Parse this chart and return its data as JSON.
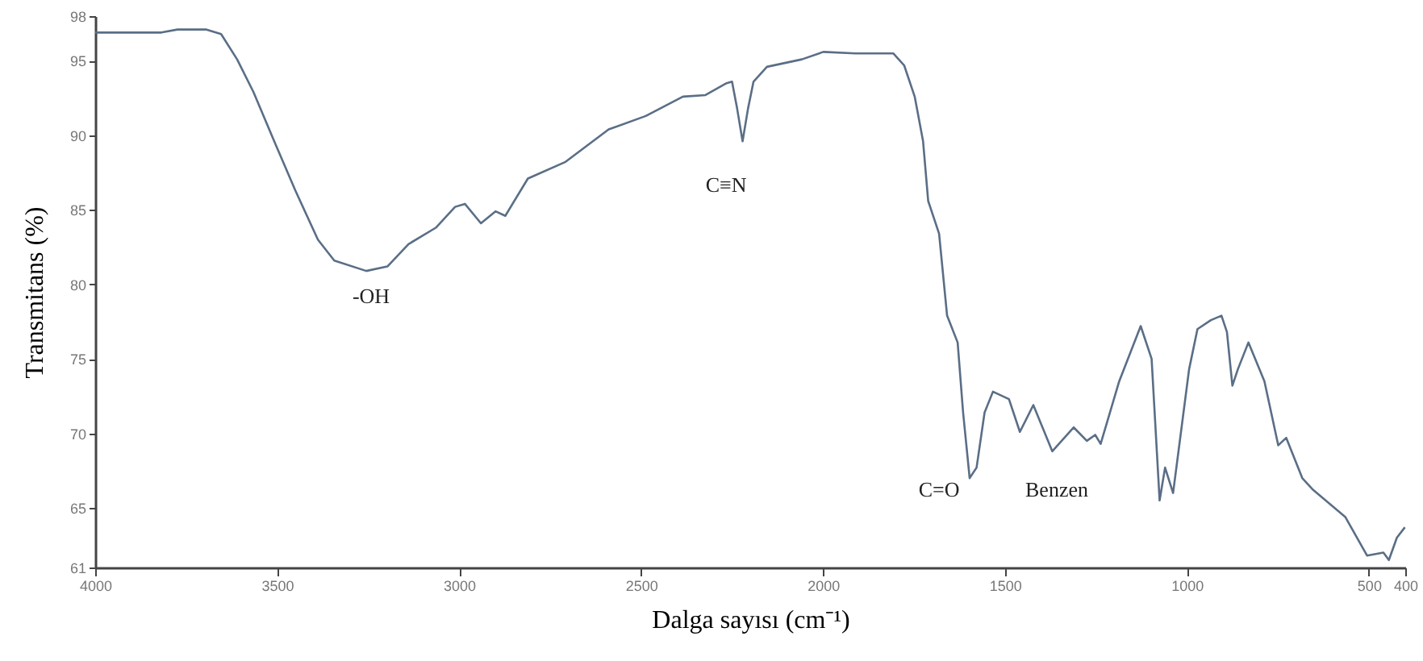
{
  "chart_data": {
    "type": "line",
    "xlabel": "Dalga sayısı (cm⁻¹)",
    "ylabel": "Transmitans (%)",
    "xlim": [
      4000,
      400
    ],
    "xticks": [
      4000,
      3500,
      3000,
      2500,
      2000,
      1500,
      1000,
      500,
      400
    ],
    "ylim": [
      61,
      98
    ],
    "yticks": [
      61,
      65,
      70,
      75,
      80,
      85,
      90,
      95,
      98
    ],
    "grid": false,
    "marker": "none",
    "line_style": "solid",
    "x": [
      4000,
      3818,
      3774,
      3694,
      3654,
      3610,
      3565,
      3508,
      3450,
      3388,
      3343,
      3255,
      3197,
      3139,
      3064,
      3011,
      2984,
      2940,
      2900,
      2873,
      2811,
      2709,
      2589,
      2487,
      2385,
      2323,
      2265,
      2250,
      2236,
      2221,
      2206,
      2191,
      2154,
      2058,
      1999,
      1911,
      1807,
      1777,
      1748,
      1725,
      1711,
      1681,
      1659,
      1630,
      1615,
      1597,
      1578,
      1556,
      1533,
      1489,
      1459,
      1422,
      1370,
      1311,
      1275,
      1252,
      1237,
      1186,
      1127,
      1097,
      1075,
      1060,
      1038,
      994,
      971,
      934,
      905,
      890,
      875,
      860,
      831,
      787,
      749,
      727,
      683,
      653,
      565,
      505,
      460,
      445,
      423,
      401
    ],
    "series": [
      {
        "color": "#5a6e86",
        "values": [
          96.9,
          96.9,
          97.1,
          97.1,
          96.8,
          95.1,
          92.9,
          89.6,
          86.3,
          83.0,
          81.6,
          80.9,
          81.2,
          82.7,
          83.8,
          85.2,
          85.4,
          84.1,
          84.9,
          84.6,
          87.1,
          88.2,
          90.4,
          91.3,
          92.6,
          92.7,
          93.5,
          93.6,
          91.8,
          89.6,
          91.8,
          93.6,
          94.6,
          95.1,
          95.6,
          95.5,
          95.5,
          94.7,
          92.6,
          89.6,
          85.6,
          83.4,
          77.9,
          76.1,
          71.4,
          67.0,
          67.7,
          71.4,
          72.8,
          72.3,
          70.1,
          71.9,
          68.8,
          70.4,
          69.5,
          69.9,
          69.3,
          73.5,
          77.2,
          75.0,
          65.5,
          67.7,
          66.0,
          74.3,
          77.0,
          77.6,
          77.9,
          76.8,
          73.2,
          74.3,
          76.1,
          73.5,
          69.2,
          69.7,
          67.0,
          66.2,
          64.4,
          61.8,
          62.0,
          61.5,
          63.0,
          63.7
        ]
      }
    ],
    "annotations": [
      "-OH",
      "C≡N",
      "C=O",
      "Benzen"
    ]
  }
}
